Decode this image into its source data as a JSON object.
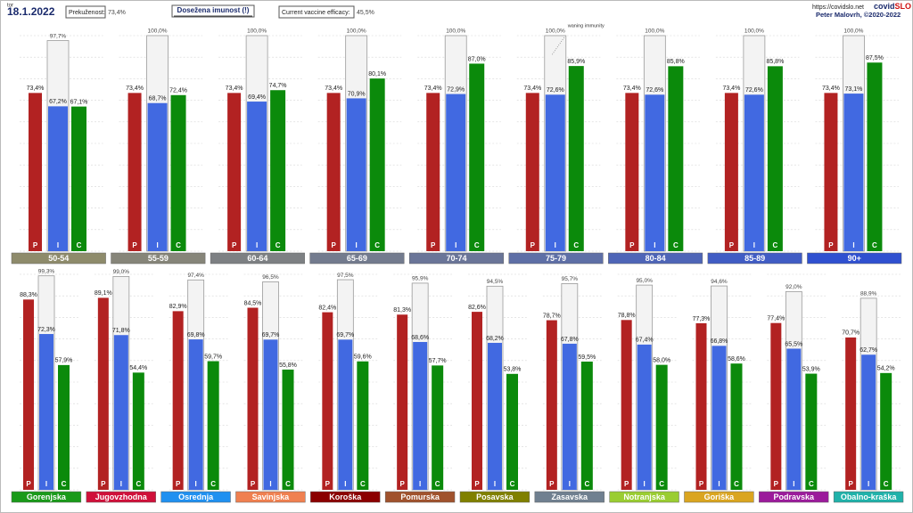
{
  "header": {
    "day": "tor",
    "date": "18.1.2022",
    "prekuzenost_label": "Prekuženost:",
    "prekuzenost_value": "73,4%",
    "button": "Dosežena imunost (!)",
    "efficacy_label": "Current vaccine efficacy:",
    "efficacy_value": "45,5%",
    "url": "https://covidslo.net",
    "brand_a": "covid",
    "brand_b": "SLO",
    "author": "Peter Malovrh, ©2020-2022"
  },
  "chart_data": [
    {
      "type": "bar",
      "categories": [
        "50-54",
        "55-59",
        "60-64",
        "65-69",
        "70-74",
        "75-79",
        "80-84",
        "85-89",
        "90+"
      ],
      "category_colors": [
        "#8e8b6b",
        "#868579",
        "#7d8083",
        "#737b8e",
        "#6a7598",
        "#5e6fa6",
        "#4e65b7",
        "#405cc4",
        "#2f50d0"
      ],
      "ylim": [
        0,
        100
      ],
      "yticks": [
        0,
        10,
        20,
        30,
        40,
        50,
        60,
        70,
        80,
        90,
        100
      ],
      "grid": true,
      "annotation": "waning immunity",
      "annotation_category": 5,
      "ceiling": {
        "color": "#f3f3f3",
        "values": [
          97.7,
          100,
          100,
          100,
          100,
          100,
          100,
          100,
          100
        ],
        "value_labels": [
          "97,7%",
          "100,0%",
          "100,0%",
          "100,0%",
          "100,0%",
          "100,0%",
          "100,0%",
          "100,0%",
          "100,0%"
        ]
      },
      "series": [
        {
          "name": "P",
          "color": "#b22222",
          "values": [
            73.4,
            73.4,
            73.4,
            73.4,
            73.4,
            73.4,
            73.4,
            73.4,
            73.4
          ],
          "value_labels": [
            "73,4%",
            "73,4%",
            "73,4%",
            "73,4%",
            "73,4%",
            "73,4%",
            "73,4%",
            "73,4%",
            "73,4%"
          ]
        },
        {
          "name": "I",
          "color": "#4169e1",
          "values": [
            67.2,
            68.7,
            69.4,
            70.9,
            72.9,
            72.6,
            72.6,
            72.6,
            73.1
          ],
          "value_labels": [
            "67,2%",
            "68,7%",
            "69,4%",
            "70,9%",
            "72,9%",
            "72,6%",
            "72,6%",
            "72,6%",
            "73,1%"
          ]
        },
        {
          "name": "C",
          "color": "#0b8a0b",
          "values": [
            67.1,
            72.4,
            74.7,
            80.1,
            87.0,
            85.9,
            85.8,
            85.8,
            87.5
          ],
          "value_labels": [
            "67,1%",
            "72,4%",
            "74,7%",
            "80,1%",
            "87,0%",
            "85,9%",
            "85,8%",
            "85,8%",
            "87,5%"
          ]
        }
      ]
    },
    {
      "type": "bar",
      "categories": [
        "Gorenjska",
        "Jugovzhodna",
        "Osrednja",
        "Savinjska",
        "Koroška",
        "Pomurska",
        "Posavska",
        "Zasavska",
        "Notranjska",
        "Goriška",
        "Podravska",
        "Obalno-kraška"
      ],
      "category_colors": [
        "#1a9a1a",
        "#d0103a",
        "#2090f0",
        "#f08050",
        "#8b0000",
        "#a0522d",
        "#808000",
        "#708090",
        "#9acd32",
        "#daa520",
        "#9b1b9b",
        "#20b2aa"
      ],
      "ylim": [
        0,
        100
      ],
      "yticks": [
        0,
        10,
        20,
        30,
        40,
        50,
        60,
        70,
        80,
        90,
        100
      ],
      "grid": true,
      "ceiling": {
        "color": "#f3f3f3",
        "values": [
          99.3,
          99.0,
          97.4,
          96.5,
          97.5,
          95.9,
          94.5,
          95.7,
          95.0,
          94.6,
          92.0,
          88.9
        ],
        "value_labels": [
          "99,3%",
          "99,0%",
          "97,4%",
          "96,5%",
          "97,5%",
          "95,9%",
          "94,5%",
          "95,7%",
          "95,0%",
          "94,6%",
          "92,0%",
          "88,9%"
        ]
      },
      "series": [
        {
          "name": "P",
          "color": "#b22222",
          "values": [
            88.3,
            89.1,
            82.9,
            84.5,
            82.4,
            81.3,
            82.6,
            78.7,
            78.8,
            77.3,
            77.4,
            70.7
          ],
          "value_labels": [
            "88,3%",
            "89,1%",
            "82,9%",
            "84,5%",
            "82,4%",
            "81,3%",
            "82,6%",
            "78,7%",
            "78,8%",
            "77,3%",
            "77,4%",
            "70,7%"
          ]
        },
        {
          "name": "I",
          "color": "#4169e1",
          "values": [
            72.3,
            71.8,
            69.8,
            69.7,
            69.7,
            68.6,
            68.2,
            67.8,
            67.4,
            66.8,
            65.5,
            62.7
          ],
          "value_labels": [
            "72,3%",
            "71,8%",
            "69,8%",
            "69,7%",
            "69,7%",
            "68,6%",
            "68,2%",
            "67,8%",
            "67,4%",
            "66,8%",
            "65,5%",
            "62,7%"
          ]
        },
        {
          "name": "C",
          "color": "#0b8a0b",
          "values": [
            57.9,
            54.4,
            59.7,
            55.8,
            59.6,
            57.7,
            53.8,
            59.5,
            58.0,
            58.6,
            53.9,
            54.2
          ],
          "value_labels": [
            "57,9%",
            "54,4%",
            "59,7%",
            "55,8%",
            "59,6%",
            "57,7%",
            "53,8%",
            "59,5%",
            "58,0%",
            "58,6%",
            "53,9%",
            "54,2%"
          ]
        }
      ]
    }
  ]
}
